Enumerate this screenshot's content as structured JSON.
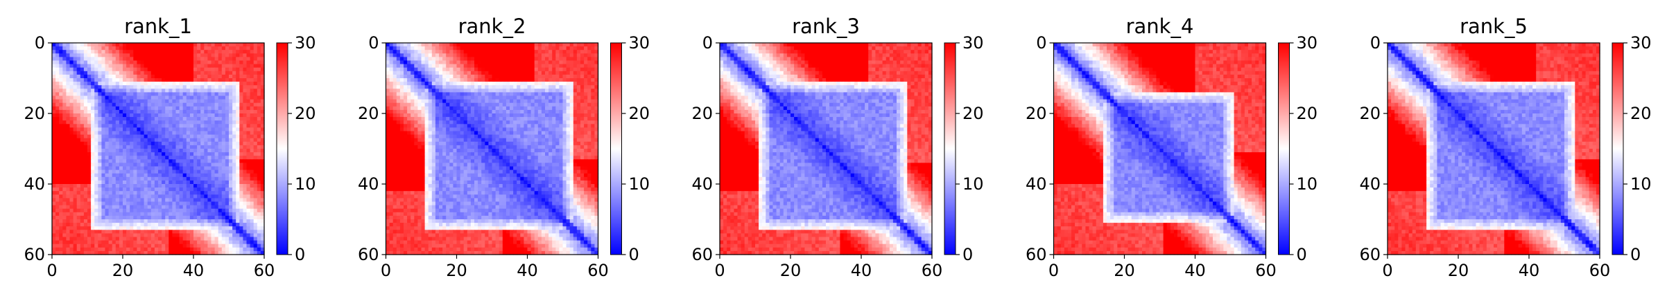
{
  "figure": {
    "panel_count": 5
  },
  "chart_data": [
    {
      "type": "heatmap",
      "title": "rank_1",
      "matrix_size": 60,
      "xlim": [
        0,
        60
      ],
      "ylim": [
        60,
        0
      ],
      "x_ticks": [
        0,
        20,
        40,
        60
      ],
      "y_ticks": [
        0,
        20,
        40,
        60
      ],
      "colorbar": {
        "colormap": "bwr",
        "vmin": 0,
        "vmax": 30,
        "ticks": [
          0,
          10,
          20,
          30
        ]
      },
      "domain_block": {
        "start": 11,
        "end": 52
      },
      "bottom_left_block": {
        "row_start": 40,
        "col_end": 32
      }
    },
    {
      "type": "heatmap",
      "title": "rank_2",
      "matrix_size": 60,
      "xlim": [
        0,
        60
      ],
      "ylim": [
        60,
        0
      ],
      "x_ticks": [
        0,
        20,
        40,
        60
      ],
      "y_ticks": [
        0,
        20,
        40,
        60
      ],
      "colorbar": {
        "colormap": "bwr",
        "vmin": 0,
        "vmax": 30,
        "ticks": [
          0,
          10,
          20,
          30
        ]
      },
      "domain_block": {
        "start": 11,
        "end": 52
      },
      "bottom_left_block": {
        "row_start": 42,
        "col_end": 32
      }
    },
    {
      "type": "heatmap",
      "title": "rank_3",
      "matrix_size": 60,
      "xlim": [
        0,
        60
      ],
      "ylim": [
        60,
        0
      ],
      "x_ticks": [
        0,
        20,
        40,
        60
      ],
      "y_ticks": [
        0,
        20,
        40,
        60
      ],
      "colorbar": {
        "colormap": "bwr",
        "vmin": 0,
        "vmax": 30,
        "ticks": [
          0,
          10,
          20,
          30
        ]
      },
      "domain_block": {
        "start": 11,
        "end": 52
      },
      "bottom_left_block": {
        "row_start": 42,
        "col_end": 33
      }
    },
    {
      "type": "heatmap",
      "title": "rank_4",
      "matrix_size": 60,
      "xlim": [
        0,
        60
      ],
      "ylim": [
        60,
        0
      ],
      "x_ticks": [
        0,
        20,
        40,
        60
      ],
      "y_ticks": [
        0,
        20,
        40,
        60
      ],
      "colorbar": {
        "colormap": "bwr",
        "vmin": 0,
        "vmax": 30,
        "ticks": [
          0,
          10,
          20,
          30
        ]
      },
      "domain_block": {
        "start": 14,
        "end": 50
      },
      "bottom_left_block": {
        "row_start": 40,
        "col_end": 30
      }
    },
    {
      "type": "heatmap",
      "title": "rank_5",
      "matrix_size": 60,
      "xlim": [
        0,
        60
      ],
      "ylim": [
        60,
        0
      ],
      "x_ticks": [
        0,
        20,
        40,
        60
      ],
      "y_ticks": [
        0,
        20,
        40,
        60
      ],
      "colorbar": {
        "colormap": "bwr",
        "vmin": 0,
        "vmax": 30,
        "ticks": [
          0,
          10,
          20,
          30
        ]
      },
      "domain_block": {
        "start": 11,
        "end": 52
      },
      "bottom_left_block": {
        "row_start": 42,
        "col_end": 32
      }
    }
  ]
}
